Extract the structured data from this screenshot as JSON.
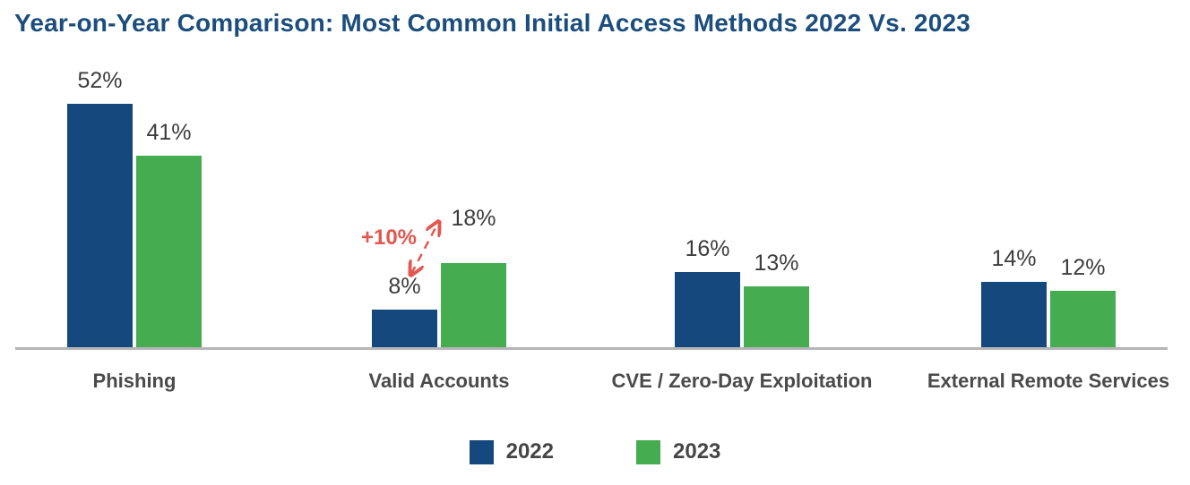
{
  "chart_data": {
    "type": "bar",
    "title": "Year-on-Year Comparison: Most Common Initial Access Methods 2022 Vs. 2023",
    "title_color": "#1c4e7d",
    "categories": [
      "Phishing",
      "Valid Accounts",
      "CVE / Zero-Day Exploitation",
      "External Remote Services"
    ],
    "series": [
      {
        "name": "2022",
        "color": "#15497e",
        "values": [
          52,
          8,
          16,
          14
        ]
      },
      {
        "name": "2023",
        "color": "#45ad4f",
        "values": [
          41,
          18,
          13,
          12
        ]
      }
    ],
    "value_suffix": "%",
    "data_labels": {
      "2022": [
        "52%",
        "8%",
        "16%",
        "14%"
      ],
      "2023": [
        "41%",
        "18%",
        "13%",
        "12%"
      ]
    },
    "annotation": {
      "text": "+10%",
      "color": "#e2574f",
      "category": "Valid Accounts",
      "from_value": "8%",
      "to_value": "18%",
      "arrow_style": "dashed-double-headed"
    },
    "legend": {
      "position": "bottom",
      "entries": [
        "2022",
        "2023"
      ]
    },
    "ylim": [
      0,
      55
    ],
    "grid": false,
    "axis_line_color": "#b5b5b8"
  }
}
